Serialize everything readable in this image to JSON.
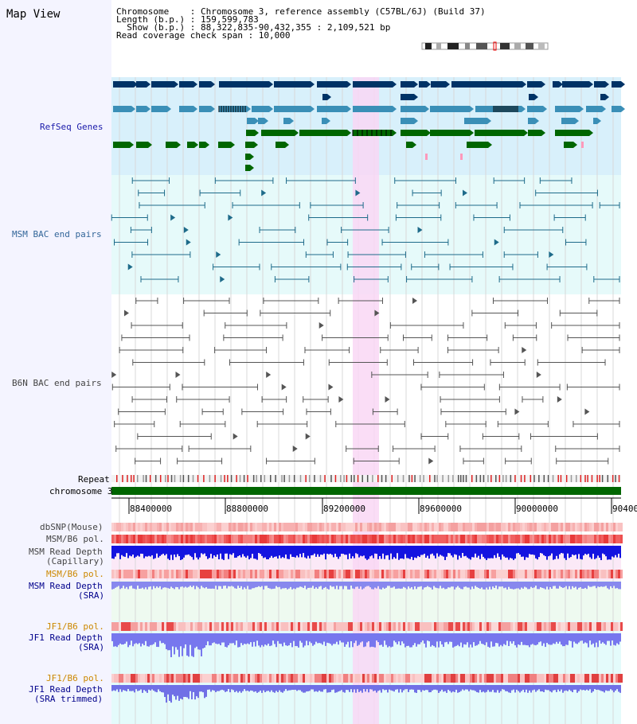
{
  "view_title": "Map View",
  "info": {
    "chromosome": "Chromosome    : Chromosome 3, reference assembly (C57BL/6J) (Build 37)",
    "length": "Length (b.p.) : 159,599,783",
    "show": "  Show (b.p.) : 88,322,835-90,432,355 : 2,109,521 bp",
    "span": "Read coverage check span : 10,000"
  },
  "track_labels": {
    "refseq": "RefSeq Genes",
    "msm_bac": "MSM BAC end pairs",
    "b6n_bac": "B6N BAC end pairs",
    "repeat": "Repeat",
    "chromosome": "chromosome 3",
    "dbsnp": "dbSNP(Mouse)",
    "msm_pol": "MSM/B6 pol.",
    "msm_depth_cap_1": "MSM Read Depth",
    "msm_depth_cap_2": "(Capillary)",
    "msm_pol2": "MSM/B6 pol.",
    "msm_sra_1": "MSM Read Depth",
    "msm_sra_2": "(SRA)",
    "jf1_pol": "JF1/B6 pol.",
    "jf1_sra_1": "JF1 Read Depth",
    "jf1_sra_2": "(SRA)",
    "jf1_pol2": "JF1/B6 pol.",
    "jf1_trim_1": "JF1 Read Depth",
    "jf1_trim_2": "(SRA trimmed)"
  },
  "axis_ticks": [
    "88400000",
    "88800000",
    "89200000",
    "89600000",
    "90000000",
    "90400"
  ],
  "colors": {
    "refseq_label": "#1a1aaa",
    "msm_label": "#336699",
    "gray_label": "#444444",
    "orange_label": "#cc8800",
    "navy_label": "#00008b",
    "highlight": "#f9d7f5",
    "refseq_bg": "#d8f0fb",
    "msm_bg": "#e6fafa",
    "chromosome_bar": "#006600"
  }
}
